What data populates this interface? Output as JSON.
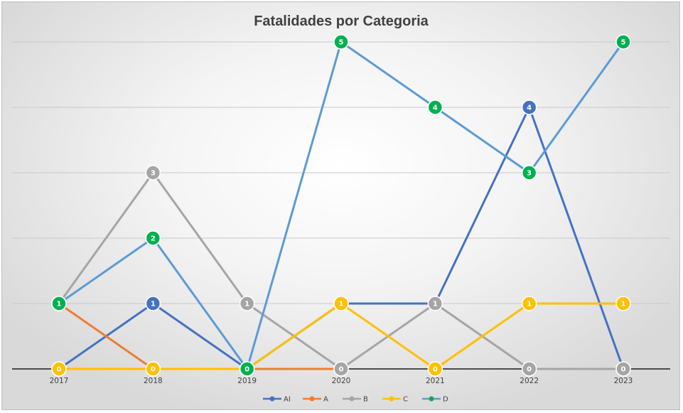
{
  "chart_data": {
    "type": "line",
    "title": "Fatalidades por Categoria",
    "xlabel": "",
    "ylabel": "",
    "categories": [
      "2017",
      "2018",
      "2019",
      "2020",
      "2021",
      "2022",
      "2023"
    ],
    "ylim": [
      0,
      5
    ],
    "grid": true,
    "legend": "bottom",
    "series": [
      {
        "name": "AI",
        "color": "#4472c4",
        "values": [
          0,
          1,
          0,
          1,
          1,
          4,
          0
        ]
      },
      {
        "name": "A",
        "color": "#ed7d31",
        "values": [
          1,
          0,
          0,
          0,
          null,
          null,
          null
        ]
      },
      {
        "name": "B",
        "color": "#a5a5a5",
        "values": [
          1,
          3,
          1,
          0,
          1,
          0,
          0
        ]
      },
      {
        "name": "C",
        "color": "#ffc000",
        "values": [
          0,
          0,
          0,
          1,
          0,
          1,
          1
        ]
      },
      {
        "name": "D",
        "color": "#00b050",
        "line_color": "#5b9bd5",
        "values": [
          1,
          2,
          0,
          5,
          4,
          3,
          5
        ]
      }
    ]
  }
}
